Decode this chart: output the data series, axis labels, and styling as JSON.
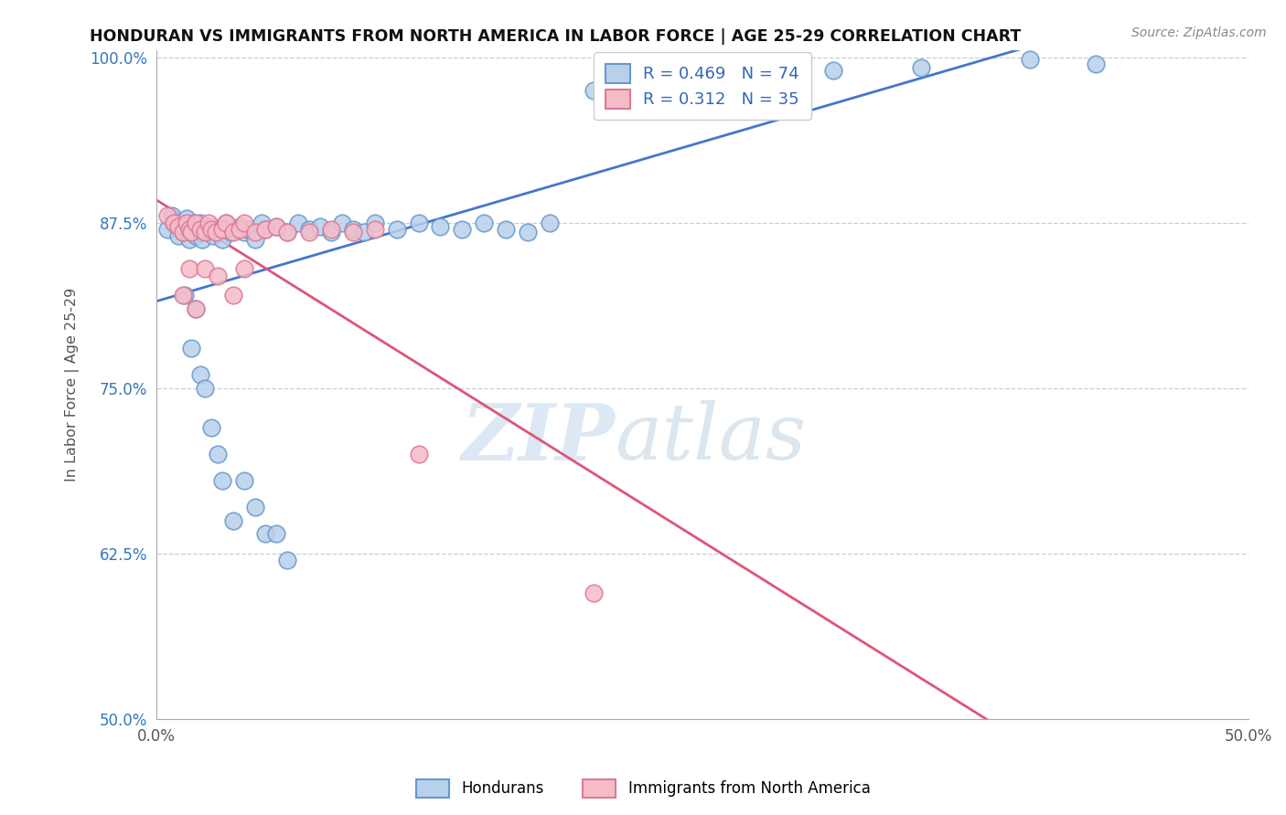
{
  "title": "HONDURAN VS IMMIGRANTS FROM NORTH AMERICA IN LABOR FORCE | AGE 25-29 CORRELATION CHART",
  "source": "Source: ZipAtlas.com",
  "ylabel": "In Labor Force | Age 25-29",
  "xlim": [
    0.0,
    0.5
  ],
  "ylim": [
    0.5,
    1.005
  ],
  "xtick_positions": [
    0.0,
    0.1,
    0.2,
    0.3,
    0.4,
    0.5
  ],
  "xtick_labels": [
    "0.0%",
    "",
    "",
    "",
    "",
    "50.0%"
  ],
  "ytick_positions": [
    0.5,
    0.625,
    0.75,
    0.875,
    1.0
  ],
  "ytick_labels": [
    "50.0%",
    "62.5%",
    "75.0%",
    "87.5%",
    "100.0%"
  ],
  "blue_fill": "#b8d0ea",
  "blue_edge": "#6699cc",
  "pink_fill": "#f5bcc8",
  "pink_edge": "#e07898",
  "blue_line_color": "#4477cc",
  "pink_line_color": "#dd5577",
  "blue_R": 0.469,
  "blue_N": 74,
  "pink_R": 0.312,
  "pink_N": 35,
  "legend_label_blue": "Hondurans",
  "legend_label_pink": "Immigrants from North America",
  "watermark_zip": "ZIP",
  "watermark_atlas": "atlas",
  "title_color": "#111111",
  "ylabel_color": "#555555",
  "yticklabel_color": "#3377bb",
  "xticklabel_color": "#555555",
  "source_color": "#888888",
  "grid_color": "#cccccc",
  "blue_x": [
    0.005,
    0.007,
    0.008,
    0.01,
    0.01,
    0.012,
    0.013,
    0.014,
    0.015,
    0.015,
    0.016,
    0.017,
    0.018,
    0.019,
    0.02,
    0.02,
    0.021,
    0.022,
    0.023,
    0.024,
    0.025,
    0.026,
    0.027,
    0.028,
    0.03,
    0.032,
    0.034,
    0.036,
    0.038,
    0.04,
    0.042,
    0.045,
    0.048,
    0.05,
    0.055,
    0.06,
    0.065,
    0.07,
    0.075,
    0.08,
    0.085,
    0.09,
    0.095,
    0.1,
    0.11,
    0.12,
    0.13,
    0.14,
    0.15,
    0.16,
    0.17,
    0.18,
    0.2,
    0.22,
    0.25,
    0.28,
    0.31,
    0.35,
    0.4,
    0.43,
    0.013,
    0.016,
    0.018,
    0.02,
    0.022,
    0.025,
    0.028,
    0.03,
    0.035,
    0.04,
    0.045,
    0.05,
    0.055,
    0.06
  ],
  "blue_y": [
    0.87,
    0.88,
    0.875,
    0.865,
    0.875,
    0.868,
    0.872,
    0.878,
    0.862,
    0.87,
    0.868,
    0.875,
    0.865,
    0.87,
    0.868,
    0.875,
    0.862,
    0.87,
    0.868,
    0.87,
    0.872,
    0.865,
    0.87,
    0.868,
    0.862,
    0.875,
    0.868,
    0.87,
    0.872,
    0.868,
    0.87,
    0.862,
    0.875,
    0.87,
    0.872,
    0.868,
    0.875,
    0.87,
    0.872,
    0.868,
    0.875,
    0.87,
    0.868,
    0.875,
    0.87,
    0.875,
    0.872,
    0.87,
    0.875,
    0.87,
    0.868,
    0.875,
    0.975,
    0.975,
    0.988,
    0.988,
    0.99,
    0.992,
    0.998,
    0.995,
    0.82,
    0.78,
    0.81,
    0.76,
    0.75,
    0.72,
    0.7,
    0.68,
    0.65,
    0.68,
    0.66,
    0.64,
    0.64,
    0.62
  ],
  "pink_x": [
    0.005,
    0.008,
    0.01,
    0.012,
    0.014,
    0.015,
    0.016,
    0.018,
    0.02,
    0.022,
    0.024,
    0.025,
    0.027,
    0.03,
    0.032,
    0.035,
    0.038,
    0.04,
    0.045,
    0.05,
    0.055,
    0.06,
    0.07,
    0.08,
    0.09,
    0.1,
    0.012,
    0.015,
    0.018,
    0.022,
    0.028,
    0.035,
    0.04,
    0.12,
    0.2
  ],
  "pink_y": [
    0.88,
    0.875,
    0.872,
    0.868,
    0.875,
    0.87,
    0.868,
    0.875,
    0.87,
    0.868,
    0.875,
    0.87,
    0.868,
    0.87,
    0.875,
    0.868,
    0.87,
    0.875,
    0.868,
    0.87,
    0.872,
    0.868,
    0.868,
    0.87,
    0.868,
    0.87,
    0.82,
    0.84,
    0.81,
    0.84,
    0.835,
    0.82,
    0.84,
    0.7,
    0.595
  ]
}
